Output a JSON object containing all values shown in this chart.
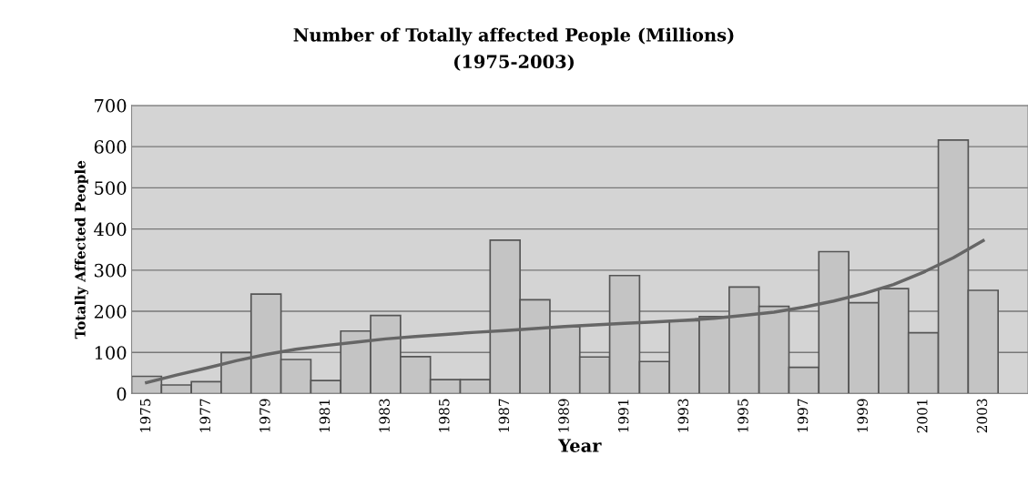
{
  "chart_data": {
    "type": "bar",
    "title": "Number of Totally affected People (Millions)",
    "subtitle": "(1975-2003)",
    "xlabel": "Year",
    "ylabel": "Totally Affected People",
    "categories": [
      "1975",
      null,
      "1977",
      null,
      "1979",
      null,
      "1981",
      null,
      "1983",
      null,
      "1985",
      null,
      "1987",
      null,
      "1989",
      null,
      "1991",
      null,
      "1993",
      null,
      "1995",
      null,
      "1997",
      null,
      "1999",
      null,
      "2001",
      null,
      "2003",
      null
    ],
    "series": [
      {
        "color": "#c4c4c4",
        "values": [
          42,
          21,
          29,
          100,
          242,
          83,
          32,
          152,
          190,
          90,
          34,
          34,
          373,
          228,
          163,
          89,
          287,
          78,
          177,
          187,
          259,
          212,
          64,
          345,
          221,
          255,
          148,
          616,
          251,
          null
        ]
      },
      {
        "type": "line",
        "color": "#666666",
        "values": [
          27,
          45,
          62,
          80,
          95,
          108,
          117,
          125,
          133,
          139,
          144,
          149,
          153,
          158,
          163,
          167,
          171,
          174,
          178,
          183,
          190,
          198,
          210,
          225,
          243,
          265,
          295,
          330,
          372,
          null
        ]
      }
    ],
    "ylim": [
      0,
      700
    ],
    "yticks": [
      0,
      100,
      200,
      300,
      400,
      500,
      600,
      700
    ],
    "grid": "y",
    "legend": false
  }
}
